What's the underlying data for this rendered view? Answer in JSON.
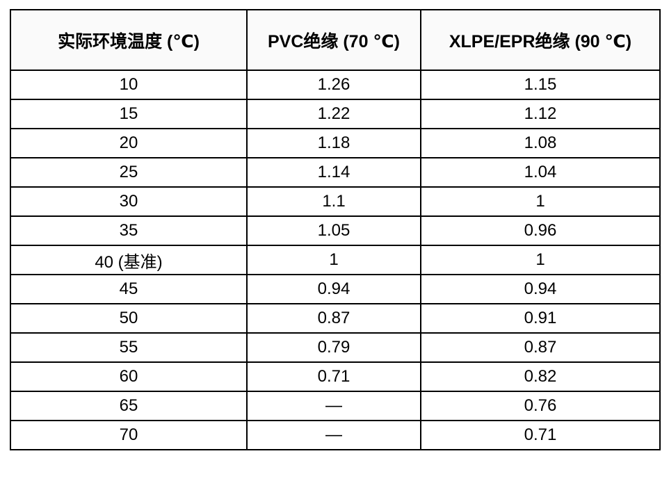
{
  "colors": {
    "border": "#000000",
    "header_bg": "#fafafa",
    "text": "#000000",
    "page_bg": "#ffffff"
  },
  "table": {
    "columns": [
      {
        "label": "实际环境温度 (℃)"
      },
      {
        "label": "PVC绝缘 (70 ℃)"
      },
      {
        "label": "XLPE/EPR绝缘 (90 ℃)"
      }
    ],
    "rows": [
      {
        "temp": "10",
        "pvc": "1.26",
        "xlpe": "1.15"
      },
      {
        "temp": "15",
        "pvc": "1.22",
        "xlpe": "1.12"
      },
      {
        "temp": "20",
        "pvc": "1.18",
        "xlpe": "1.08"
      },
      {
        "temp": "25",
        "pvc": "1.14",
        "xlpe": "1.04"
      },
      {
        "temp": "30",
        "pvc": "1.1",
        "xlpe": "1"
      },
      {
        "temp": "35",
        "pvc": "1.05",
        "xlpe": "0.96"
      },
      {
        "temp": "40 (基准)",
        "pvc": "1",
        "xlpe": "1"
      },
      {
        "temp": "45",
        "pvc": "0.94",
        "xlpe": "0.94"
      },
      {
        "temp": "50",
        "pvc": "0.87",
        "xlpe": "0.91"
      },
      {
        "temp": "55",
        "pvc": "0.79",
        "xlpe": "0.87"
      },
      {
        "temp": "60",
        "pvc": "0.71",
        "xlpe": "0.82"
      },
      {
        "temp": "65",
        "pvc": "—",
        "xlpe": "0.76"
      },
      {
        "temp": "70",
        "pvc": "—",
        "xlpe": "0.71"
      }
    ]
  },
  "chart_data": {
    "type": "table",
    "title": "",
    "columns": [
      "实际环境温度 (℃)",
      "PVC绝缘 (70 ℃)",
      "XLPE/EPR绝缘 (90 ℃)"
    ],
    "categories": [
      "10",
      "15",
      "20",
      "25",
      "30",
      "35",
      "40 (基准)",
      "45",
      "50",
      "55",
      "60",
      "65",
      "70"
    ],
    "series": [
      {
        "name": "PVC绝缘 (70 ℃)",
        "values": [
          1.26,
          1.22,
          1.18,
          1.14,
          1.1,
          1.05,
          1,
          0.94,
          0.87,
          0.79,
          0.71,
          null,
          null
        ]
      },
      {
        "name": "XLPE/EPR绝缘 (90 ℃)",
        "values": [
          1.15,
          1.12,
          1.08,
          1.04,
          1,
          0.96,
          1,
          0.94,
          0.91,
          0.87,
          0.82,
          0.76,
          0.71
        ]
      }
    ],
    "notes": "null values shown as em dash (—) in table; 40 ℃ is the reference (基准) ambient temperature"
  }
}
